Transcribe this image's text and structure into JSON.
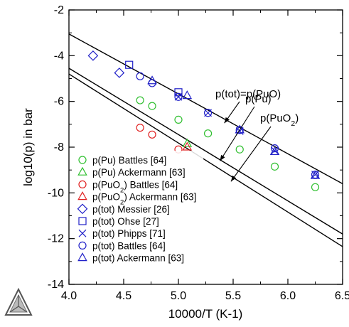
{
  "chart_data": {
    "type": "scatter",
    "xlabel": "10000/T (K-1)",
    "ylabel": "log10(p) in bar",
    "xlim": [
      4.0,
      6.5
    ],
    "ylim": [
      -14,
      -2
    ],
    "xticks": [
      "4.0",
      "4.5",
      "5.0",
      "5.5",
      "6.0",
      "6.5"
    ],
    "yticks": [
      "-14",
      "-12",
      "-10",
      "-8",
      "-6",
      "-4",
      "-2"
    ],
    "grid": false,
    "legend_position": "bottom-left",
    "lines": [
      {
        "points": [
          [
            4.0,
            -3.05
          ],
          [
            6.5,
            -9.6
          ]
        ]
      },
      {
        "points": [
          [
            4.0,
            -4.55
          ],
          [
            6.5,
            -11.8
          ]
        ]
      },
      {
        "points": [
          [
            4.0,
            -4.8
          ],
          [
            6.5,
            -12.35
          ]
        ]
      }
    ],
    "annotations": [
      {
        "text": "p(tot)=p(PuO)",
        "arrow_to": [
          5.42,
          -6.95
        ]
      },
      {
        "text": "p(Pu)",
        "arrow_to": [
          5.38,
          -8.6
        ]
      },
      {
        "text": "p(PuO",
        "sub": "2",
        "suffix": ")",
        "arrow_to": [
          5.48,
          -9.5
        ]
      }
    ],
    "series": [
      {
        "name": "p(Pu) Battles [64]",
        "marker": "circle",
        "color": "#2fbf2f",
        "points": [
          [
            4.65,
            -5.95
          ],
          [
            4.76,
            -6.2
          ],
          [
            5.0,
            -6.8
          ],
          [
            5.27,
            -7.4
          ],
          [
            5.56,
            -8.1
          ],
          [
            5.88,
            -8.85
          ],
          [
            6.25,
            -9.75
          ]
        ]
      },
      {
        "name": "p(Pu) Ackermann [63]",
        "marker": "triangle",
        "color": "#2fbf2f",
        "points": [
          [
            5.08,
            -7.85
          ]
        ]
      },
      {
        "name": "p(PuO",
        "name_sub": "2",
        "name_suffix": ") Battles [64]",
        "marker": "circle",
        "color": "#e02020",
        "points": [
          [
            4.65,
            -7.15
          ],
          [
            4.76,
            -7.45
          ],
          [
            5.0,
            -8.1
          ]
        ]
      },
      {
        "name": "p(PuO",
        "name_sub": "2",
        "name_suffix": ") Ackermann [63]",
        "marker": "triangle",
        "color": "#e02020",
        "points": [
          [
            5.08,
            -8.0
          ]
        ]
      },
      {
        "name": "p(tot) Messier [26]",
        "marker": "diamond",
        "color": "#2020c8",
        "points": [
          [
            4.22,
            -4.0
          ],
          [
            4.46,
            -4.75
          ]
        ]
      },
      {
        "name": "p(tot) Ohse [27]",
        "marker": "square",
        "color": "#2020c8",
        "points": [
          [
            4.55,
            -4.4
          ],
          [
            5.0,
            -5.6
          ]
        ]
      },
      {
        "name": "p(tot) Phipps [71]",
        "marker": "x",
        "color": "#2020c8",
        "points": [
          [
            5.0,
            -5.8
          ],
          [
            5.27,
            -6.5
          ],
          [
            5.56,
            -7.3
          ],
          [
            5.88,
            -8.15
          ],
          [
            6.25,
            -9.2
          ]
        ]
      },
      {
        "name": "p(tot) Battles [64]",
        "marker": "circle",
        "color": "#2020c8",
        "points": [
          [
            4.65,
            -4.9
          ],
          [
            4.76,
            -5.2
          ],
          [
            5.0,
            -5.8
          ],
          [
            5.27,
            -6.5
          ],
          [
            5.56,
            -7.25
          ],
          [
            5.88,
            -8.05
          ],
          [
            6.25,
            -9.2
          ]
        ]
      },
      {
        "name": "p(tot) Ackermann [63]",
        "marker": "triangle",
        "color": "#2020c8",
        "points": [
          [
            4.76,
            -5.1
          ],
          [
            5.08,
            -5.75
          ],
          [
            5.56,
            -7.25
          ],
          [
            5.88,
            -8.2
          ],
          [
            6.25,
            -9.25
          ]
        ]
      }
    ]
  },
  "logo": {
    "name": "triangle-logo-icon",
    "color": "#555555"
  }
}
